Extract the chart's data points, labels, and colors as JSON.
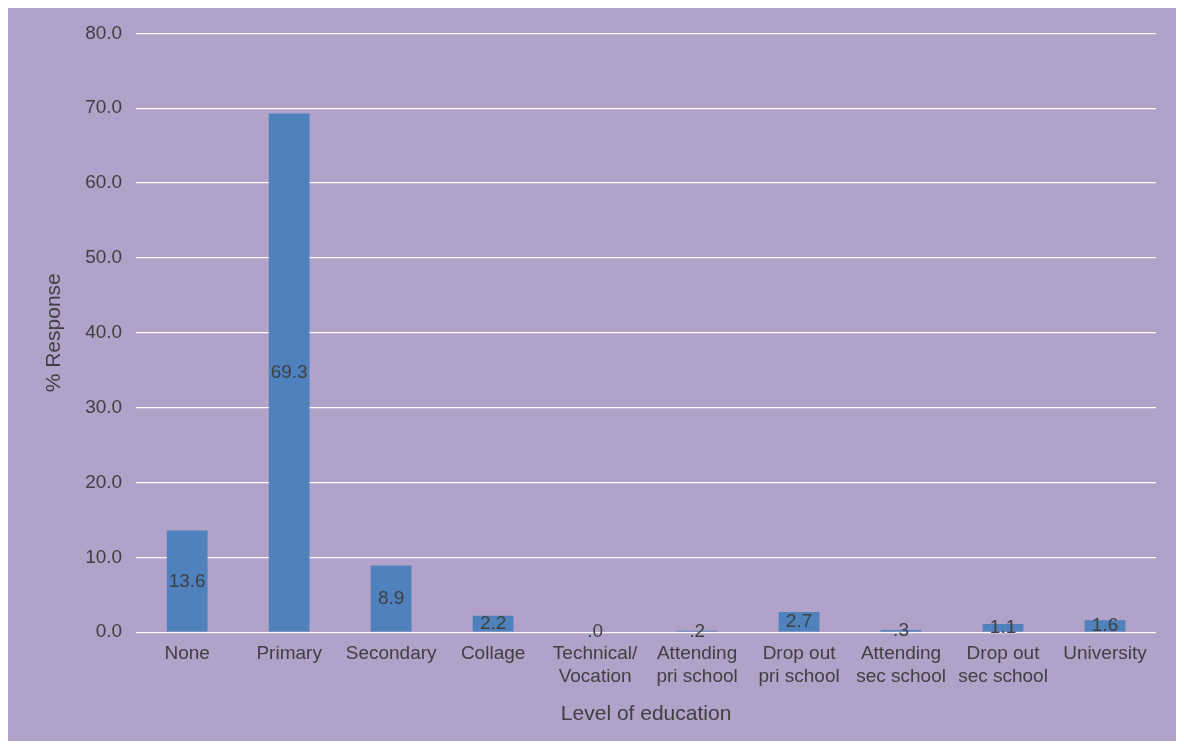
{
  "chart_data": {
    "type": "bar",
    "xlabel": "Level of education",
    "ylabel": "% Response",
    "categories": [
      "None",
      "Primary",
      "Secondary",
      "Collage",
      "Technical/ Vocation",
      "Attending pri school",
      "Drop out pri school",
      "Attending sec school",
      "Drop out sec school",
      "University"
    ],
    "values": [
      13.6,
      69.3,
      8.9,
      2.2,
      0,
      0.2,
      2.7,
      0.3,
      1.1,
      1.6
    ],
    "value_labels": [
      "13.6",
      "69.3",
      "8.9",
      "2.2",
      ".0",
      ".2",
      "2.7",
      ".3",
      "1.1",
      "1.6"
    ],
    "color": "#4f81bd",
    "ylim": [
      0,
      80
    ],
    "yticks": [
      {
        "value": 0,
        "label": "0.0"
      },
      {
        "value": 10,
        "label": "10.0"
      },
      {
        "value": 20,
        "label": "20.0"
      },
      {
        "value": 30,
        "label": "30.0"
      },
      {
        "value": 40,
        "label": "40.0"
      },
      {
        "value": 50,
        "label": "50.0"
      },
      {
        "value": 60,
        "label": "60.0"
      },
      {
        "value": 70,
        "label": "70.0"
      },
      {
        "value": 80,
        "label": "80.0"
      }
    ],
    "grid": "y",
    "legend": false
  }
}
